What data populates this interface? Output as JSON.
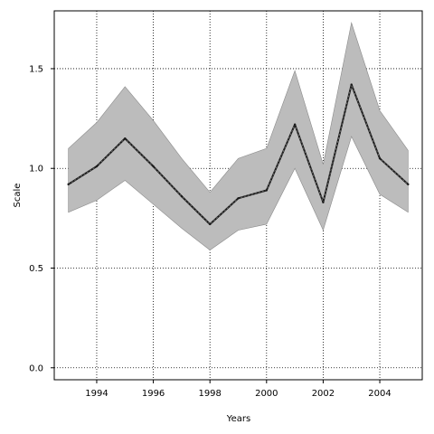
{
  "chart_data": {
    "type": "area",
    "title": "",
    "xlabel": "Years",
    "ylabel": "Scale",
    "xlim": [
      1992.5,
      2005.5
    ],
    "ylim": [
      -0.06,
      1.79
    ],
    "xticks": [
      1994,
      1996,
      1998,
      2000,
      2002,
      2004
    ],
    "xtick_labels": [
      "1994",
      "1996",
      "1998",
      "2000",
      "2002",
      "2004"
    ],
    "yticks": [
      0.0,
      0.5,
      1.0,
      1.5
    ],
    "ytick_labels": [
      "0.0",
      "0.5",
      "1.0",
      "1.5"
    ],
    "grid": true,
    "grid_style": "dotted",
    "x": [
      1993,
      1994,
      1995,
      1996,
      1997,
      1998,
      1999,
      2000,
      2001,
      2002,
      2003,
      2004,
      2005
    ],
    "series": [
      {
        "role": "estimate",
        "values": [
          0.92,
          1.01,
          1.15,
          1.01,
          0.86,
          0.72,
          0.85,
          0.89,
          1.22,
          0.83,
          1.42,
          1.05,
          0.92
        ]
      },
      {
        "role": "band-upper",
        "values": [
          1.1,
          1.23,
          1.41,
          1.24,
          1.05,
          0.88,
          1.05,
          1.1,
          1.49,
          1.02,
          1.73,
          1.29,
          1.09
        ]
      },
      {
        "role": "band-lower",
        "values": [
          0.78,
          0.84,
          0.94,
          0.82,
          0.7,
          0.59,
          0.69,
          0.72,
          1.0,
          0.69,
          1.16,
          0.87,
          0.78
        ]
      }
    ],
    "colors": {
      "band_fill": "#bcbcbc",
      "band_edge": "#8a8a8a",
      "line": "#1a1a1a",
      "grid": "#000000",
      "frame": "#000000"
    }
  }
}
